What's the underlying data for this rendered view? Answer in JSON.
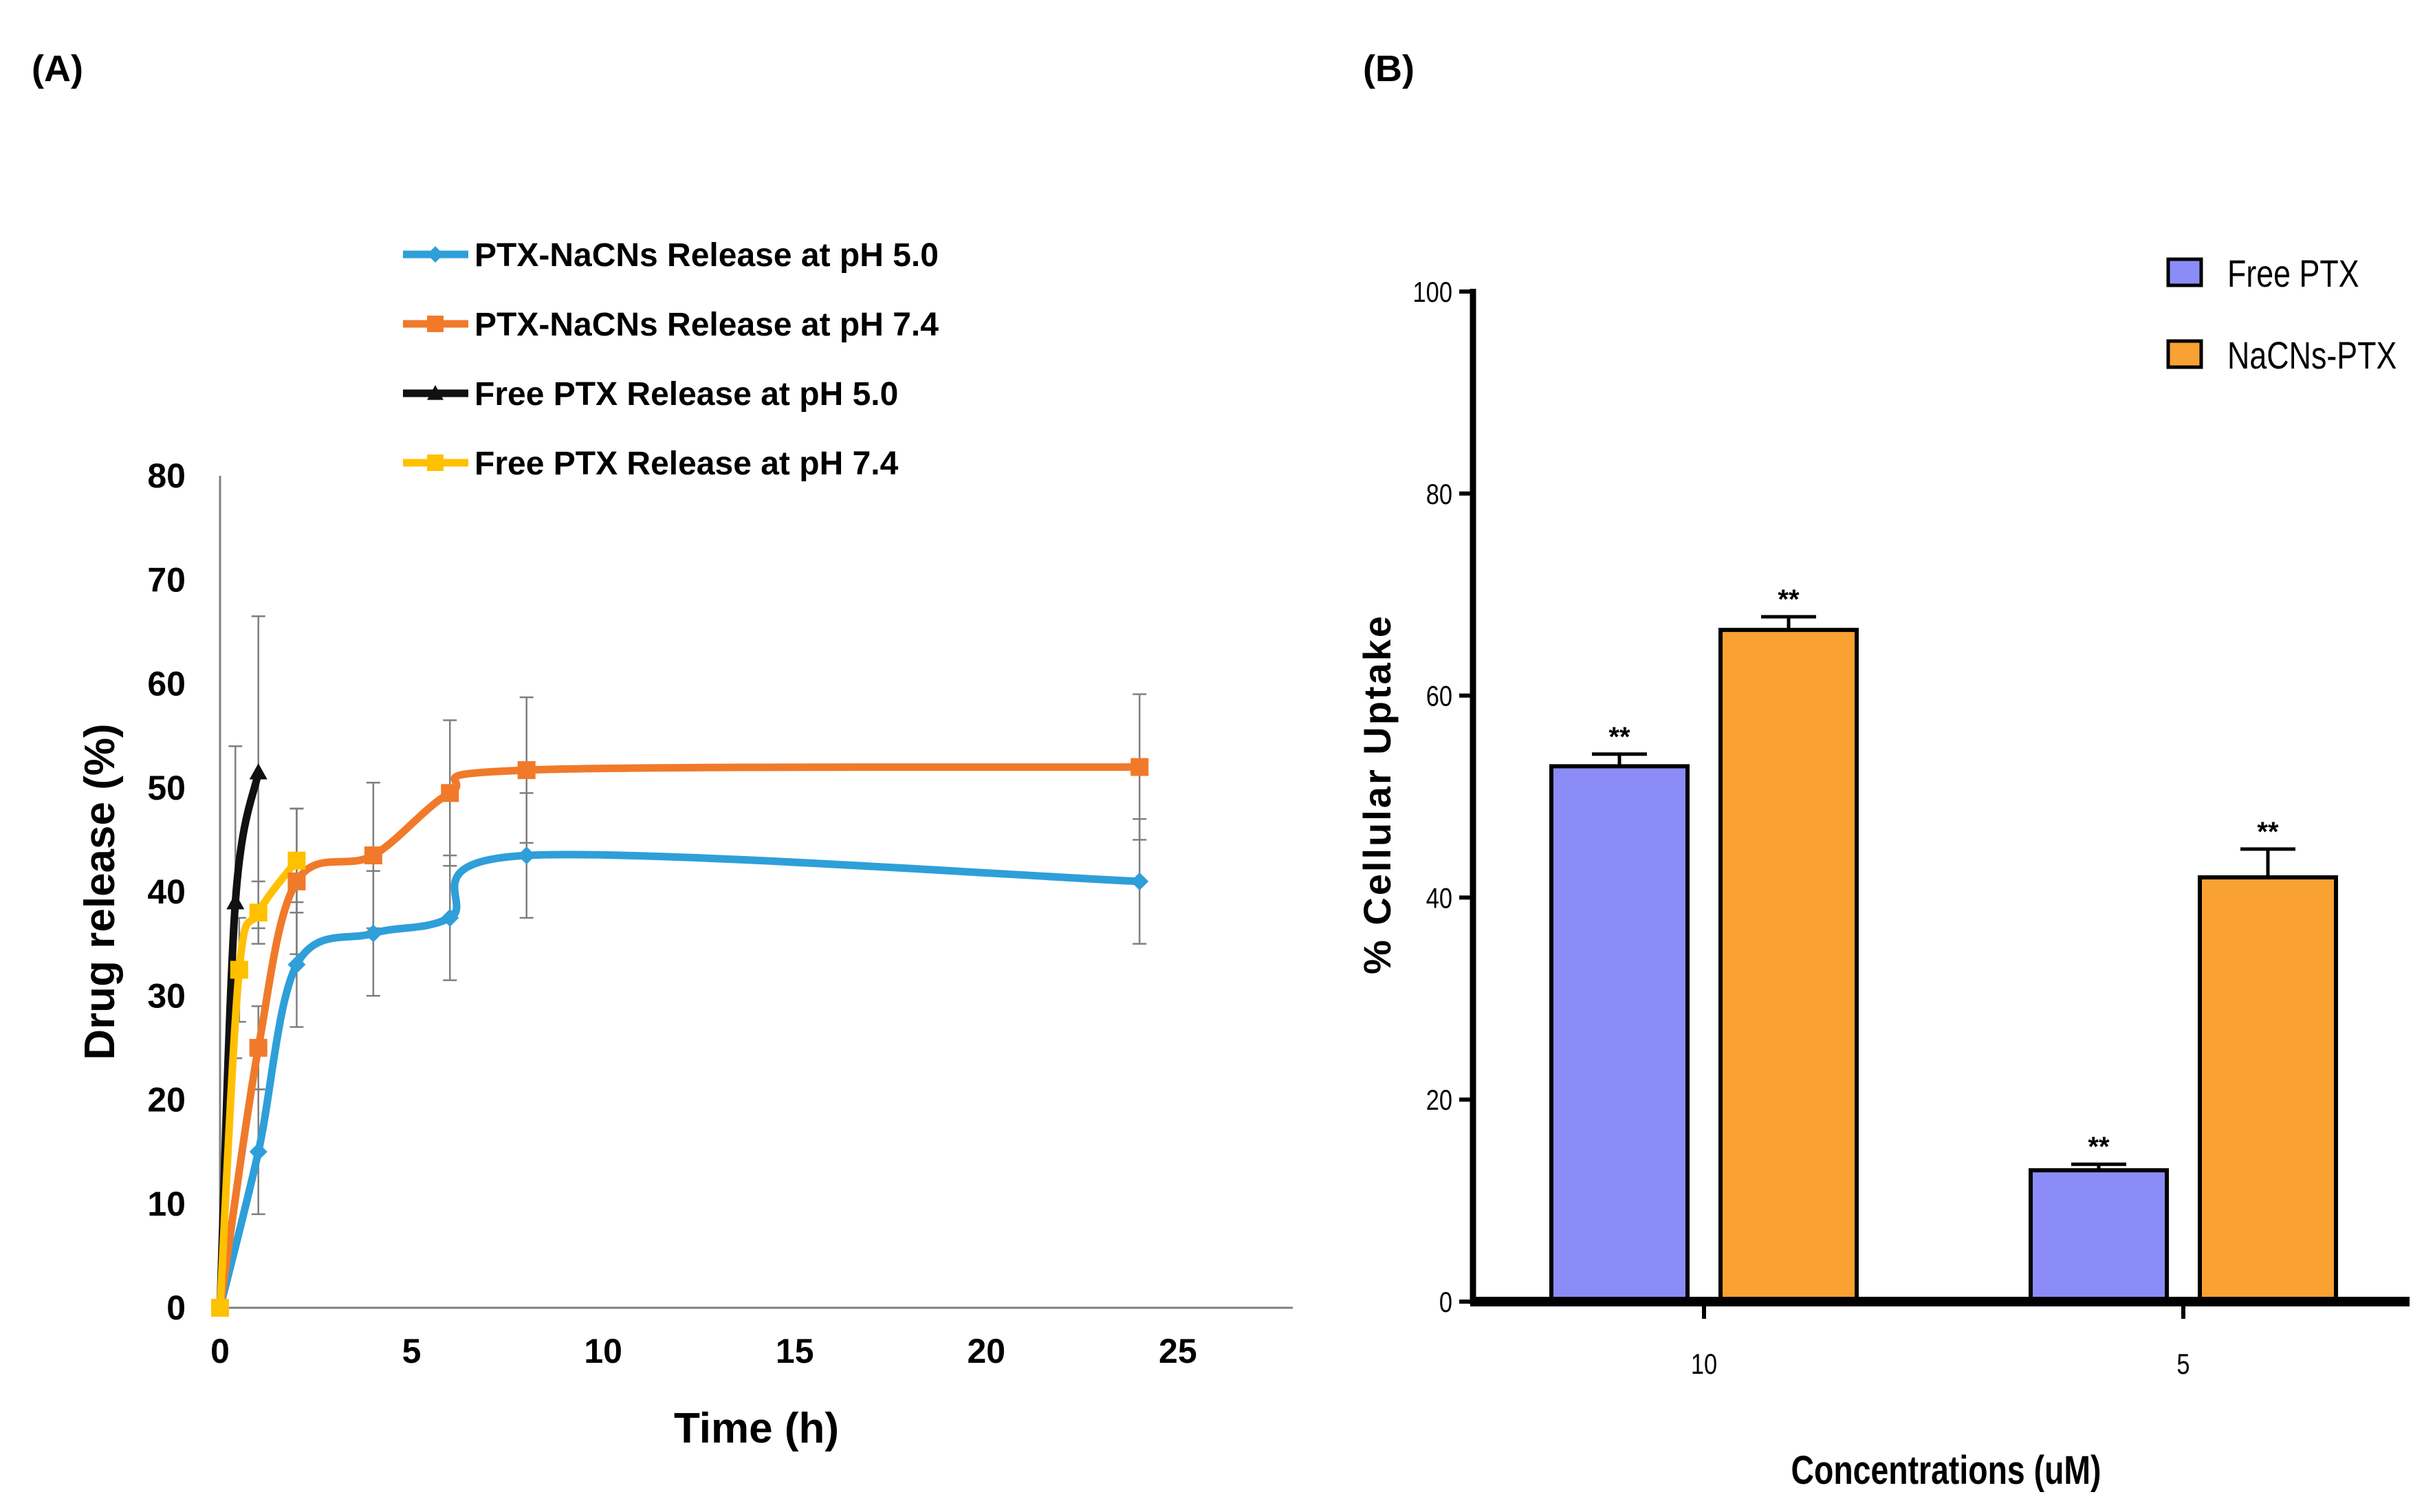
{
  "panels": {
    "a_label": "(A)",
    "b_label": "(B)"
  },
  "chart_data": [
    {
      "type": "line",
      "title": "",
      "xlabel": "Time (h)",
      "ylabel": "Drug release (%)",
      "xlim": [
        0,
        28
      ],
      "ylim": [
        0,
        80
      ],
      "xticks": [
        0,
        5,
        10,
        15,
        20,
        25
      ],
      "yticks": [
        0,
        10,
        20,
        30,
        40,
        50,
        60,
        70,
        80
      ],
      "legend_position": "top",
      "series": [
        {
          "name": "PTX-NaCNs Release at pH 5.0",
          "color": "#2e9fd9",
          "marker": "diamond",
          "x": [
            0,
            1,
            2,
            4,
            6,
            8,
            24
          ],
          "y": [
            0,
            15,
            33,
            36,
            37.5,
            43.5,
            41
          ],
          "err": [
            0,
            6,
            6,
            6,
            6,
            6,
            6
          ]
        },
        {
          "name": "PTX-NaCNs Release at pH 7.4",
          "color": "#f07a2a",
          "marker": "square",
          "x": [
            0,
            1,
            2,
            4,
            6,
            8,
            24
          ],
          "y": [
            0,
            25,
            41,
            43.5,
            49.5,
            51.7,
            52
          ],
          "err": [
            0,
            4,
            7,
            7,
            7,
            7,
            7
          ]
        },
        {
          "name": "Free PTX Release at pH 5.0",
          "color": "#111111",
          "marker": "triangle",
          "x": [
            0,
            0.4,
            1
          ],
          "y": [
            0,
            39,
            51.5
          ],
          "err": [
            0,
            15,
            15
          ]
        },
        {
          "name": "Free PTX Release at  pH 7.4",
          "color": "#ffc000",
          "marker": "square",
          "x": [
            0,
            0.5,
            1,
            2
          ],
          "y": [
            0,
            32.5,
            38,
            43
          ],
          "err": [
            0,
            5,
            3,
            5
          ]
        }
      ]
    },
    {
      "type": "bar",
      "title": "",
      "xlabel": "Concentrations (uM)",
      "ylabel": "% Cellular Uptake",
      "ylim": [
        0,
        100
      ],
      "yticks": [
        0,
        20,
        40,
        60,
        80,
        100
      ],
      "categories": [
        "10",
        "5"
      ],
      "legend_position": "top-right",
      "series": [
        {
          "name": "Free PTX",
          "color": "#8c8cf8",
          "values": [
            53,
            13
          ],
          "err": [
            1.2,
            0.6
          ],
          "annotations": [
            "**",
            "**"
          ]
        },
        {
          "name": "NaCNs-PTX",
          "color": "#f9a132",
          "values": [
            66.5,
            42
          ],
          "err": [
            1.3,
            2.8
          ],
          "annotations": [
            "**",
            "**"
          ]
        }
      ]
    }
  ]
}
